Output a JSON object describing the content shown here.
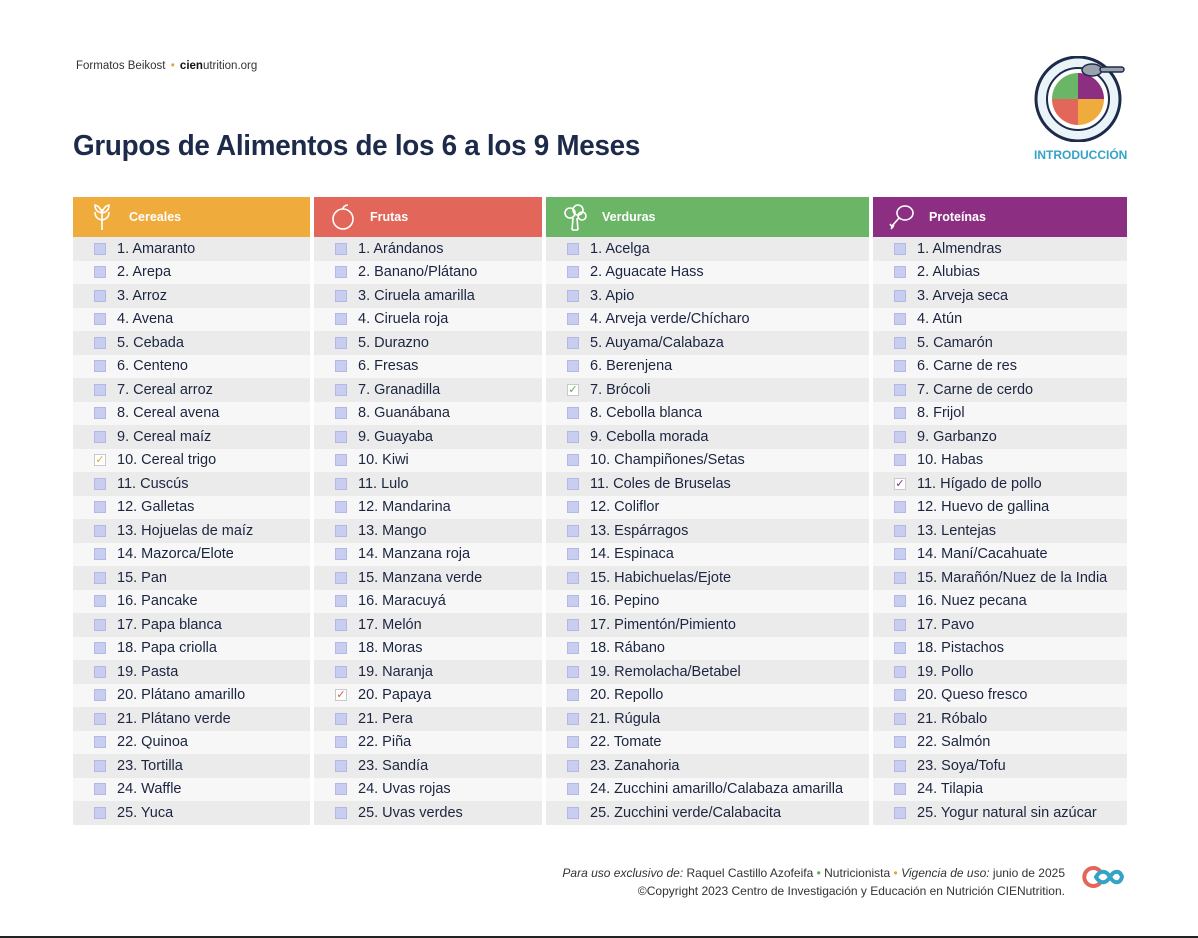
{
  "brand": {
    "prefix": "Formatos Beikost",
    "sep": "•",
    "site_bold": "cien",
    "site_rest": "utrition.org"
  },
  "title": "Grupos de Alimentos de los 6 a los 9 Meses",
  "intro_label": "INTRODUCCIÓN",
  "colors": {
    "cereales": "#efab3c",
    "frutas": "#e3665a",
    "verduras": "#6bb666",
    "proteinas": "#8c2f83",
    "checkbox": "#c9cdf0"
  },
  "columns": [
    {
      "label": "Cereales",
      "icon": "wheat-icon",
      "items": [
        "1. Amaranto",
        "2. Arepa",
        "3. Arroz",
        "4. Avena",
        "5. Cebada",
        "6. Centeno",
        "7. Cereal arroz",
        "8. Cereal avena",
        "9. Cereal maíz",
        "10. Cereal trigo",
        "11. Cuscús",
        "12. Galletas",
        "13. Hojuelas de maíz",
        "14. Mazorca/Elote",
        "15. Pan",
        "16. Pancake",
        "17. Papa blanca",
        "18. Papa criolla",
        "19. Pasta",
        "20. Plátano amarillo",
        "21. Plátano verde",
        "22. Quinoa",
        "23. Tortilla",
        "24. Waffle",
        "25. Yuca"
      ],
      "checked": [
        10
      ]
    },
    {
      "label": "Frutas",
      "icon": "fruit-icon",
      "items": [
        "1. Arándanos",
        "2. Banano/Plátano",
        "3. Ciruela amarilla",
        "4. Ciruela roja",
        "5. Durazno",
        "6. Fresas",
        "7. Granadilla",
        "8. Guanábana",
        "9. Guayaba",
        "10. Kiwi",
        "11. Lulo",
        "12. Mandarina",
        "13. Mango",
        "14. Manzana roja",
        "15. Manzana verde",
        "16. Maracuyá",
        "17. Melón",
        "18. Moras",
        "19. Naranja",
        "20. Papaya",
        "21. Pera",
        "22. Piña",
        "23. Sandía",
        "24. Uvas rojas",
        "25. Uvas verdes"
      ],
      "checked": [
        20
      ]
    },
    {
      "label": "Verduras",
      "icon": "broccoli-icon",
      "items": [
        "1. Acelga",
        "2. Aguacate Hass",
        "3. Apio",
        "4. Arveja verde/Chícharo",
        "5. Auyama/Calabaza",
        "6. Berenjena",
        "7. Brócoli",
        "8. Cebolla blanca",
        "9. Cebolla morada",
        "10. Champiñones/Setas",
        "11. Coles de Bruselas",
        "12. Coliflor",
        "13. Espárragos",
        "14. Espinaca",
        "15. Habichuelas/Ejote",
        "16. Pepino",
        "17. Pimentón/Pimiento",
        "18. Rábano",
        "19. Remolacha/Betabel",
        "20. Repollo",
        "21. Rúgula",
        "22. Tomate",
        "23. Zanahoria",
        "24. Zucchini amarillo/Calabaza amarilla",
        "25. Zucchini verde/Calabacita"
      ],
      "checked": [
        7
      ]
    },
    {
      "label": "Proteínas",
      "icon": "drumstick-icon",
      "items": [
        "1. Almendras",
        "2. Alubias",
        "3. Arveja seca",
        "4. Atún",
        "5. Camarón",
        "6. Carne de res",
        "7. Carne de cerdo",
        "8. Frijol",
        "9. Garbanzo",
        "10. Habas",
        "11. Hígado de pollo",
        "12. Huevo de gallina",
        "13. Lentejas",
        "14. Maní/Cacahuate",
        "15. Marañón/Nuez de la India",
        "16. Nuez pecana",
        "17. Pavo",
        "18. Pistachos",
        "19. Pollo",
        "20. Queso fresco",
        "21. Róbalo",
        "22. Salmón",
        "23. Soya/Tofu",
        "24. Tilapia",
        "25. Yogur natural sin azúcar"
      ],
      "checked": [
        11
      ]
    }
  ],
  "footer": {
    "exclusive_label": "Para uso exclusivo de:",
    "user": "Raquel Castillo Azofeifa",
    "role": "Nutricionista",
    "validity_label": "Vigencia de uso:",
    "validity": "junio de 2025",
    "copyright": "©Copyright 2023 Centro de Investigación y Educación en Nutrición CIENutrition."
  }
}
